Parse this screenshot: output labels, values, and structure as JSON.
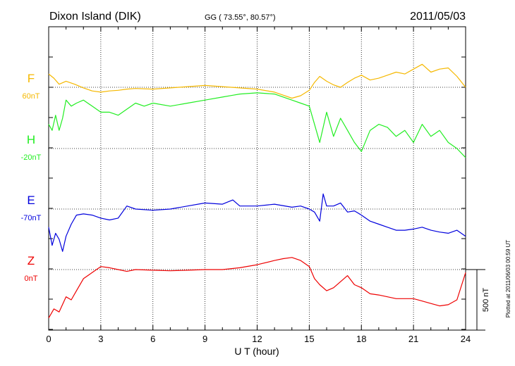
{
  "chart_data": {
    "type": "line",
    "title": "Dixon Island (DIK)",
    "subtitle": "GG ( 73.55°,  80.57°)",
    "date": "2011/05/03",
    "xlabel": "U T (hour)",
    "x_ticks": [
      "0",
      "3",
      "6",
      "9",
      "12",
      "15",
      "18",
      "21",
      "24"
    ],
    "xlim": [
      0,
      24
    ],
    "grid": true,
    "plotted_note": "Plotted at 2011/06/03 00:59 UT",
    "scale_bar_label": "500 nT",
    "scale_bar_nT": 500,
    "series": [
      {
        "name": "F",
        "baseline_label": "60nT",
        "color": "#f5b800",
        "x": [
          0,
          0.3,
          0.6,
          1,
          1.5,
          2,
          2.5,
          3,
          3.5,
          4,
          4.5,
          5,
          6,
          7,
          8,
          9,
          10,
          11,
          12,
          13,
          13.5,
          14,
          14.5,
          15,
          15.3,
          15.6,
          16,
          16.4,
          16.8,
          17.2,
          17.6,
          18,
          18.5,
          19,
          19.5,
          20,
          20.5,
          21,
          21.5,
          22,
          22.5,
          23,
          23.5,
          24
        ],
        "y": [
          -22,
          -15,
          -5,
          -10,
          -5,
          1,
          6,
          8,
          6,
          5,
          3,
          2,
          3,
          1,
          -1,
          -3,
          -1,
          1,
          3,
          8,
          13,
          18,
          14,
          5,
          -8,
          -18,
          -10,
          -4,
          0,
          -8,
          -15,
          -20,
          -12,
          -15,
          -20,
          -25,
          -22,
          -30,
          -38,
          -25,
          -30,
          -32,
          -18,
          0
        ]
      },
      {
        "name": "H",
        "baseline_label": "-20nT",
        "color": "#22ee22",
        "x": [
          0,
          0.2,
          0.4,
          0.6,
          0.8,
          1,
          1.3,
          1.6,
          2,
          2.5,
          3,
          3.5,
          4,
          4.5,
          5,
          5.5,
          6,
          7,
          8,
          9,
          10,
          10.6,
          11,
          12,
          13,
          14,
          14.5,
          15,
          15.3,
          15.6,
          16,
          16.4,
          16.8,
          17.2,
          17.6,
          18,
          18.5,
          19,
          19.5,
          20,
          20.5,
          21,
          21.5,
          22,
          22.5,
          23,
          23.5,
          24
        ],
        "y": [
          -40,
          -30,
          -55,
          -30,
          -50,
          -80,
          -70,
          -75,
          -80,
          -70,
          -60,
          -60,
          -55,
          -65,
          -75,
          -70,
          -75,
          -70,
          -75,
          -80,
          -85,
          -88,
          -90,
          -92,
          -90,
          -80,
          -75,
          -70,
          -40,
          -10,
          -60,
          -20,
          -50,
          -30,
          -10,
          5,
          -30,
          -40,
          -35,
          -20,
          -30,
          -10,
          -40,
          -20,
          -30,
          -10,
          0,
          15
        ]
      },
      {
        "name": "E",
        "baseline_label": "-70nT",
        "color": "#0000dd",
        "x": [
          0,
          0.2,
          0.4,
          0.6,
          0.8,
          1,
          1.3,
          1.6,
          2,
          2.5,
          3,
          3.5,
          4,
          4.5,
          5,
          6,
          7,
          8,
          9,
          10,
          10.6,
          11,
          12,
          13,
          14,
          14.5,
          15,
          15.3,
          15.6,
          15.8,
          16,
          16.4,
          16.8,
          17.2,
          17.6,
          18,
          18.5,
          19,
          19.5,
          20,
          20.5,
          21,
          21.5,
          22,
          22.5,
          23,
          23.5,
          24
        ],
        "y": [
          30,
          60,
          40,
          50,
          70,
          45,
          25,
          10,
          8,
          10,
          15,
          18,
          15,
          -5,
          0,
          2,
          0,
          -5,
          -10,
          -8,
          -15,
          -5,
          -5,
          -8,
          -3,
          -5,
          0,
          5,
          20,
          -25,
          -5,
          -5,
          -10,
          5,
          3,
          10,
          20,
          25,
          30,
          35,
          35,
          33,
          30,
          35,
          38,
          40,
          35,
          45
        ]
      },
      {
        "name": "Z",
        "baseline_label": "0nT",
        "color": "#ee0000",
        "x": [
          0,
          0.3,
          0.6,
          1,
          1.3,
          1.6,
          2,
          2.5,
          3,
          3.5,
          4,
          4.5,
          5,
          6,
          7,
          8,
          9,
          10,
          11,
          12,
          13,
          13.5,
          14,
          14.5,
          15,
          15.3,
          15.6,
          16,
          16.4,
          16.8,
          17.2,
          17.6,
          18,
          18.5,
          19,
          19.5,
          20,
          20.5,
          21,
          21.5,
          22,
          22.5,
          23,
          23.5,
          24
        ],
        "y": [
          80,
          65,
          70,
          45,
          50,
          35,
          15,
          5,
          -5,
          -3,
          0,
          3,
          0,
          1,
          2,
          1,
          0,
          0,
          -3,
          -8,
          -15,
          -18,
          -20,
          -15,
          -5,
          15,
          25,
          35,
          30,
          20,
          10,
          25,
          30,
          40,
          42,
          45,
          48,
          48,
          48,
          52,
          56,
          60,
          58,
          50,
          5
        ]
      }
    ]
  }
}
